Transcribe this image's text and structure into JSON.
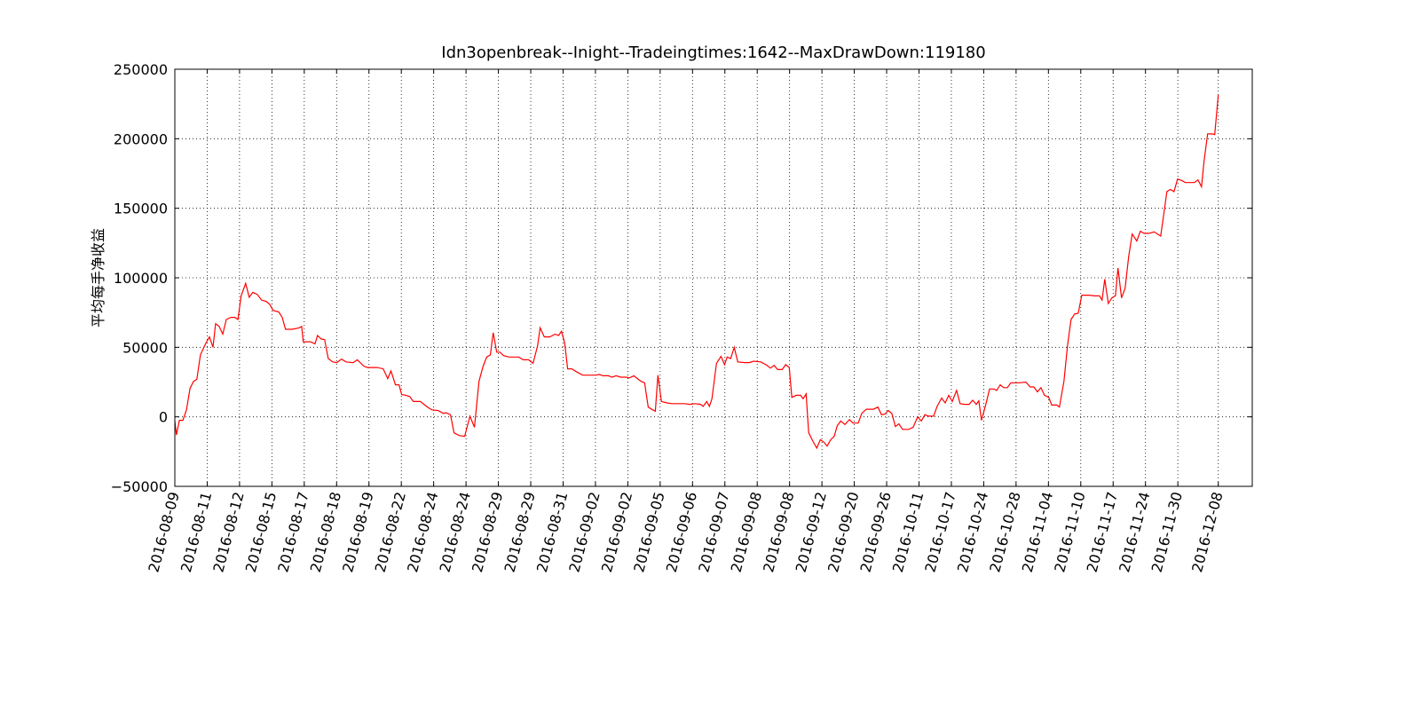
{
  "chart_data": {
    "type": "line",
    "title": "Idn3openbreak--Inight--Tradeingtimes:1642--MaxDrawDown:119180",
    "y_label": "平均每手净收益",
    "color": "#ff0000",
    "grid": true,
    "xlim": [
      0,
      333
    ],
    "ylim": [
      -50000,
      250000
    ],
    "yticks": [
      {
        "value": -50000,
        "label": "−50000"
      },
      0,
      50000,
      100000,
      150000,
      200000,
      250000
    ],
    "xticks": [
      {
        "value": 0,
        "label": "2016-08-09"
      },
      {
        "value": 10,
        "label": "2016-08-11"
      },
      {
        "value": 20,
        "label": "2016-08-12"
      },
      {
        "value": 30,
        "label": "2016-08-15"
      },
      {
        "value": 40,
        "label": "2016-08-17"
      },
      {
        "value": 50,
        "label": "2016-08-18"
      },
      {
        "value": 60,
        "label": "2016-08-19"
      },
      {
        "value": 70,
        "label": "2016-08-22"
      },
      {
        "value": 80,
        "label": "2016-08-24"
      },
      {
        "value": 90,
        "label": "2016-08-24"
      },
      {
        "value": 100,
        "label": "2016-08-29"
      },
      {
        "value": 110,
        "label": "2016-08-29"
      },
      {
        "value": 120,
        "label": "2016-08-31"
      },
      {
        "value": 130,
        "label": "2016-09-02"
      },
      {
        "value": 140,
        "label": "2016-09-02"
      },
      {
        "value": 150,
        "label": "2016-09-05"
      },
      {
        "value": 160,
        "label": "2016-09-06"
      },
      {
        "value": 170,
        "label": "2016-09-07"
      },
      {
        "value": 180,
        "label": "2016-09-08"
      },
      {
        "value": 190,
        "label": "2016-09-08"
      },
      {
        "value": 200,
        "label": "2016-09-12"
      },
      {
        "value": 210,
        "label": "2016-09-20"
      },
      {
        "value": 220,
        "label": "2016-09-26"
      },
      {
        "value": 230,
        "label": "2016-10-11"
      },
      {
        "value": 240,
        "label": "2016-10-17"
      },
      {
        "value": 250,
        "label": "2016-10-24"
      },
      {
        "value": 260,
        "label": "2016-10-28"
      },
      {
        "value": 270,
        "label": "2016-11-04"
      },
      {
        "value": 280,
        "label": "2016-11-10"
      },
      {
        "value": 290,
        "label": "2016-11-17"
      },
      {
        "value": 300,
        "label": "2016-11-24"
      },
      {
        "value": 310,
        "label": "2016-11-30"
      },
      {
        "value": 322.5,
        "label": "2016-12-08"
      }
    ],
    "x": [
      0,
      0.5,
      1.4,
      2.5,
      3.6,
      4.7,
      5.8,
      6.8,
      7.9,
      9.6,
      10.7,
      11.8,
      12.6,
      13.7,
      14.8,
      15.9,
      17.3,
      18.6,
      19.5,
      20.5,
      21.9,
      23,
      24.1,
      25.5,
      26.8,
      28.2,
      29.3,
      30.4,
      32.1,
      33.2,
      34.2,
      36.4,
      38.4,
      39.2,
      39.7,
      41.9,
      43.3,
      44.1,
      45.2,
      46.3,
      47.4,
      48.8,
      50.1,
      51.5,
      52.9,
      55.1,
      56.4,
      58.4,
      59.5,
      62.5,
      64.4,
      65.8,
      66.8,
      68.2,
      69.3,
      70.1,
      71.5,
      72.6,
      73.7,
      75.9,
      77,
      78.4,
      79.5,
      81.4,
      83,
      83.8,
      85.2,
      86.3,
      87.9,
      89.6,
      91.2,
      92.6,
      94,
      95.3,
      96.4,
      97.5,
      98.4,
      99.5,
      100.5,
      101.6,
      103.3,
      104.9,
      106.3,
      107.7,
      109.3,
      110.7,
      112.1,
      112.9,
      114.2,
      115.9,
      117.5,
      118.6,
      119.5,
      120.5,
      121.4,
      122.7,
      124.1,
      126,
      127.9,
      130.1,
      131.2,
      132.3,
      134,
      135.1,
      136.4,
      137.8,
      139.5,
      140.5,
      141.9,
      143,
      144.1,
      145.2,
      146.3,
      147.7,
      148.5,
      149.3,
      150.4,
      152.1,
      153.7,
      155.6,
      157.5,
      159.2,
      160.8,
      162.5,
      163.3,
      164.4,
      165.2,
      166,
      167.4,
      168.8,
      169.9,
      170.7,
      171.8,
      172.9,
      174,
      176.2,
      177.5,
      178.9,
      181.1,
      182.7,
      184.1,
      185.2,
      186.3,
      187.7,
      188.8,
      189.9,
      190.7,
      192.1,
      193.4,
      194.2,
      195.1,
      195.9,
      197.3,
      198.4,
      199.5,
      200.5,
      201.6,
      202.7,
      203.8,
      204.7,
      205.8,
      207.1,
      208.5,
      209.6,
      211.2,
      212.3,
      213.7,
      215.9,
      217.3,
      218.4,
      219.5,
      220.5,
      221.6,
      222.7,
      223.8,
      224.9,
      226.8,
      228.2,
      229.6,
      230.7,
      231.8,
      232.9,
      234.5,
      235.6,
      237,
      238.1,
      239.2,
      240.3,
      241.6,
      242.7,
      244.1,
      245.5,
      246.6,
      247.7,
      248.5,
      249.3,
      250.7,
      251.8,
      253.2,
      254,
      255.1,
      256.2,
      257.3,
      258.4,
      259.7,
      261.1,
      263,
      264.4,
      265.5,
      266.6,
      267.7,
      268.8,
      270.1,
      271,
      272.6,
      273.4,
      274.8,
      275.9,
      277,
      278.1,
      279.2,
      280.3,
      282.5,
      284.4,
      285.8,
      286.6,
      287.4,
      288.5,
      289.6,
      290.7,
      291.5,
      292.6,
      293.7,
      294.8,
      295.9,
      297.3,
      298.4,
      299.5,
      301.1,
      302.7,
      304.7,
      305.5,
      306.6,
      307.7,
      308.8,
      309.9,
      311.2,
      312.3,
      313.7,
      315.1,
      316.2,
      317.3,
      318.1,
      319.2,
      320.5,
      321.4,
      322.5
    ],
    "values": [
      -3000,
      -13000,
      -2500,
      -2500,
      5000,
      20500,
      25500,
      27000,
      44500,
      53000,
      57500,
      50000,
      67000,
      65000,
      59500,
      70000,
      71500,
      71500,
      70000,
      87000,
      96000,
      86000,
      89500,
      88000,
      84000,
      83000,
      81000,
      76500,
      75500,
      71500,
      63000,
      63000,
      64000,
      65000,
      54000,
      54000,
      52500,
      58500,
      56000,
      55500,
      42000,
      39500,
      39000,
      41500,
      39500,
      39000,
      41000,
      36500,
      35500,
      35500,
      34500,
      27500,
      33000,
      23000,
      23000,
      16000,
      15500,
      14500,
      11000,
      11000,
      9000,
      6500,
      5000,
      4500,
      2500,
      3000,
      1500,
      -11500,
      -13500,
      -14000,
      500,
      -7500,
      25500,
      36500,
      43000,
      44500,
      60500,
      46500,
      46500,
      44000,
      43000,
      43000,
      43000,
      41000,
      41000,
      38500,
      51000,
      64000,
      57500,
      57500,
      59500,
      58500,
      61500,
      53000,
      34500,
      34500,
      32500,
      30000,
      30000,
      30000,
      30500,
      29500,
      29500,
      28500,
      29500,
      28500,
      28500,
      28000,
      29500,
      27500,
      25500,
      24500,
      7000,
      5000,
      4000,
      30000,
      11000,
      10000,
      9500,
      9500,
      9500,
      9000,
      9500,
      9000,
      7500,
      11000,
      7500,
      13000,
      38500,
      43500,
      37500,
      43000,
      42000,
      50000,
      39500,
      39000,
      39000,
      40000,
      39500,
      37500,
      35000,
      37000,
      34000,
      34000,
      37500,
      35500,
      14000,
      15500,
      15500,
      13000,
      16500,
      -11500,
      -18000,
      -22500,
      -16500,
      -18000,
      -21000,
      -16500,
      -14000,
      -6500,
      -3000,
      -5500,
      -2000,
      -4500,
      -4500,
      2500,
      5500,
      5500,
      7000,
      1500,
      2000,
      4500,
      2500,
      -7000,
      -5000,
      -9000,
      -9000,
      -7500,
      0,
      -3000,
      1500,
      500,
      500,
      7500,
      13500,
      10000,
      15500,
      11000,
      19000,
      9500,
      9000,
      9000,
      12000,
      9000,
      11500,
      -2500,
      9500,
      20000,
      20000,
      19000,
      23000,
      21000,
      21000,
      24500,
      24500,
      24500,
      25000,
      21500,
      21500,
      18000,
      21000,
      15500,
      14000,
      8500,
      8500,
      7000,
      25500,
      51000,
      70000,
      74000,
      74500,
      87500,
      87500,
      87000,
      87000,
      84000,
      99000,
      81500,
      85500,
      87000,
      107000,
      85500,
      92500,
      115000,
      131500,
      126500,
      133500,
      132000,
      132000,
      133000,
      130000,
      143000,
      162000,
      163500,
      162000,
      171000,
      170000,
      168500,
      168500,
      168500,
      170500,
      165500,
      184000,
      203500,
      203500,
      203000,
      231500
    ]
  }
}
